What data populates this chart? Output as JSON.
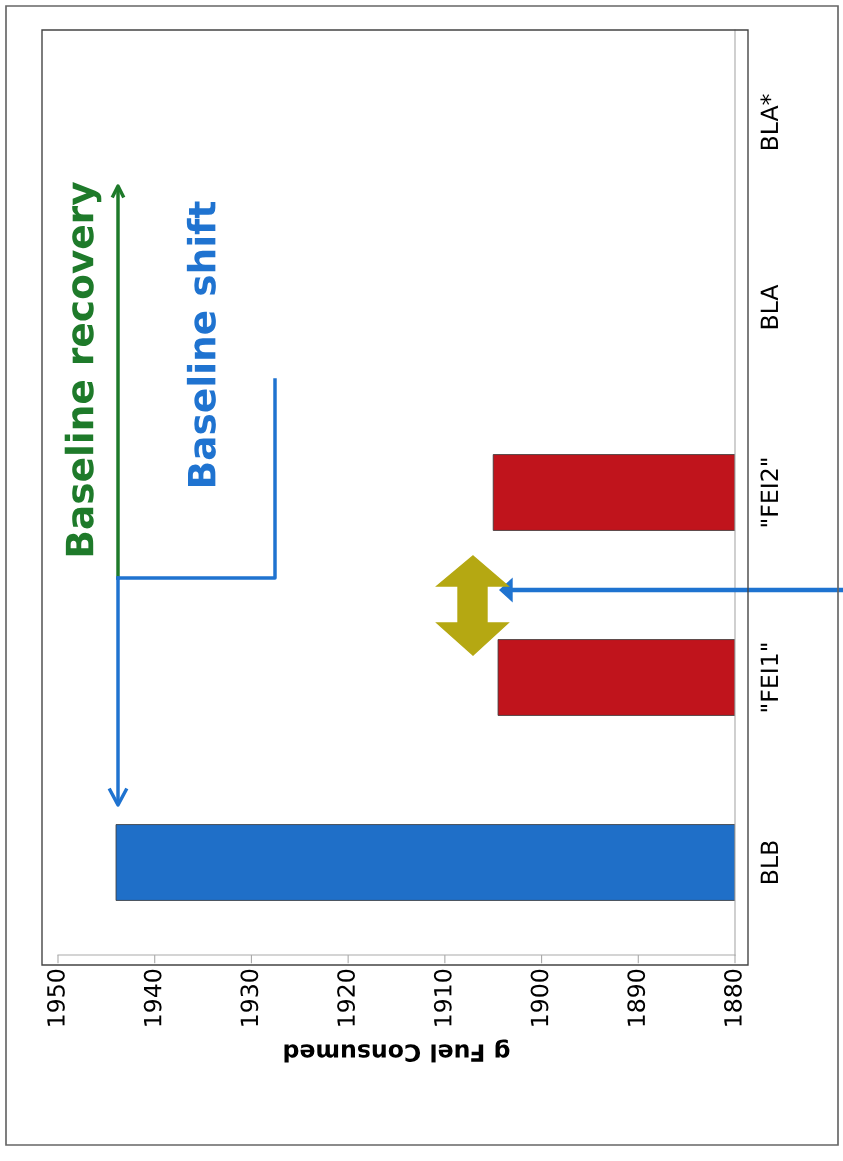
{
  "chart_data": {
    "type": "bar",
    "orientation": "horizontal",
    "xlabel": "g Fuel Consumed",
    "categories": [
      "BLA*",
      "BLA",
      "\"FEI2\"",
      "\"FEI1\"",
      "BLB"
    ],
    "values": [
      null,
      null,
      1905,
      1904.5,
      1944
    ],
    "colors": [
      "#c0141c",
      "#c0141c",
      "#c0141c",
      "#c0141c",
      "#1f6fc8"
    ],
    "xlim": [
      1950,
      1880
    ],
    "xticks": [
      1950,
      1940,
      1930,
      1920,
      1910,
      1900,
      1890,
      1880
    ],
    "grid": false,
    "annotations": [
      "Baseline recovery",
      "Baseline shift"
    ]
  }
}
